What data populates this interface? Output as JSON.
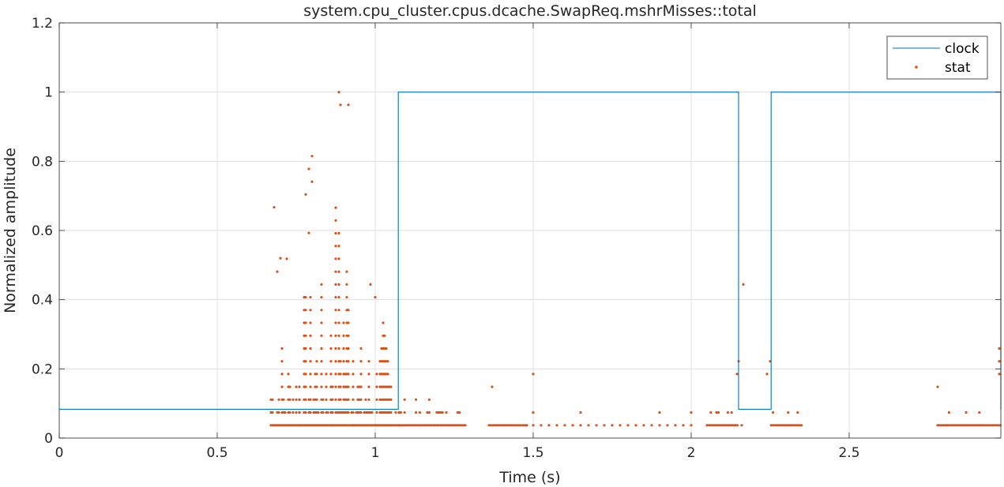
{
  "chart_data": {
    "type": "line",
    "title": "system.cpu_cluster.cpus.dcache.SwapReq.mshrMisses::total",
    "xlabel": "Time (s)",
    "ylabel": "Normalized amplitude",
    "xlim": [
      0,
      2.98
    ],
    "ylim": [
      0,
      1.2
    ],
    "xticks": [
      0,
      0.5,
      1,
      1.5,
      2,
      2.5
    ],
    "xtick_labels": [
      "0",
      "0.5",
      "1",
      "1.5",
      "2",
      "2.5"
    ],
    "yticks": [
      0,
      0.2,
      0.4,
      0.6,
      0.8,
      1,
      1.2
    ],
    "ytick_labels": [
      "0",
      "0.2",
      "0.4",
      "0.6",
      "0.8",
      "1",
      "1.2"
    ],
    "grid": true,
    "legend_position": "top-right",
    "series": [
      {
        "name": "clock",
        "style": "line",
        "color": "#0072BD",
        "x": [
          0,
          1.073,
          1.073,
          2.15,
          2.15,
          2.253,
          2.253,
          2.98,
          2.98
        ],
        "y": [
          0.083,
          0.083,
          1,
          1,
          0.083,
          0.083,
          1,
          1,
          0.083
        ]
      },
      {
        "name": "stat",
        "style": "markers",
        "color": "#D95319",
        "step": 0.037,
        "columns": [
          {
            "x0": 0.67,
            "x1": 0.76,
            "dx": 0.005,
            "maxLevel": 8
          },
          {
            "x0": 0.76,
            "x1": 0.86,
            "dx": 0.005,
            "maxLevel": 12
          },
          {
            "x0": 0.86,
            "x1": 0.93,
            "dx": 0.005,
            "maxLevel": 20
          },
          {
            "x0": 0.93,
            "x1": 1.005,
            "dx": 0.005,
            "maxLevel": 8
          },
          {
            "x0": 1.005,
            "x1": 1.075,
            "dx": 0.005,
            "maxLevel": 9
          },
          {
            "x0": 1.075,
            "x1": 1.29,
            "dx": 0.006,
            "maxLevel": 3
          },
          {
            "x0": 1.36,
            "x1": 1.48,
            "dx": 0.006,
            "maxLevel": 2
          },
          {
            "x0": 1.5,
            "x1": 2.02,
            "dx": 0.025,
            "maxLevel": 2
          },
          {
            "x0": 2.05,
            "x1": 2.15,
            "dx": 0.006,
            "maxLevel": 2
          },
          {
            "x0": 2.253,
            "x1": 2.35,
            "dx": 0.006,
            "maxLevel": 2
          },
          {
            "x0": 2.78,
            "x1": 2.98,
            "dx": 0.006,
            "maxLevel": 2
          }
        ],
        "points": [
          {
            "x": 0.68,
            "y": 0.667
          },
          {
            "x": 0.72,
            "y": 0.518
          },
          {
            "x": 0.7,
            "y": 0.52
          },
          {
            "x": 0.69,
            "y": 0.481
          },
          {
            "x": 0.79,
            "y": 0.778
          },
          {
            "x": 0.8,
            "y": 0.815
          },
          {
            "x": 0.78,
            "y": 0.704
          },
          {
            "x": 0.79,
            "y": 0.593
          },
          {
            "x": 0.8,
            "y": 0.741
          },
          {
            "x": 0.885,
            "y": 1.0
          },
          {
            "x": 0.89,
            "y": 0.963
          },
          {
            "x": 0.915,
            "y": 0.963
          },
          {
            "x": 0.985,
            "y": 0.444
          },
          {
            "x": 1.0,
            "y": 0.407
          },
          {
            "x": 1.5,
            "y": 0.185
          },
          {
            "x": 1.37,
            "y": 0.148
          },
          {
            "x": 2.15,
            "y": 0.222
          },
          {
            "x": 2.145,
            "y": 0.185
          },
          {
            "x": 2.165,
            "y": 0.444
          },
          {
            "x": 2.25,
            "y": 0.222
          },
          {
            "x": 2.24,
            "y": 0.185
          },
          {
            "x": 2.16,
            "y": 0.037
          },
          {
            "x": 2.78,
            "y": 0.148
          },
          {
            "x": 2.975,
            "y": 0.259
          },
          {
            "x": 2.975,
            "y": 0.222
          },
          {
            "x": 2.975,
            "y": 0.185
          }
        ]
      }
    ]
  }
}
